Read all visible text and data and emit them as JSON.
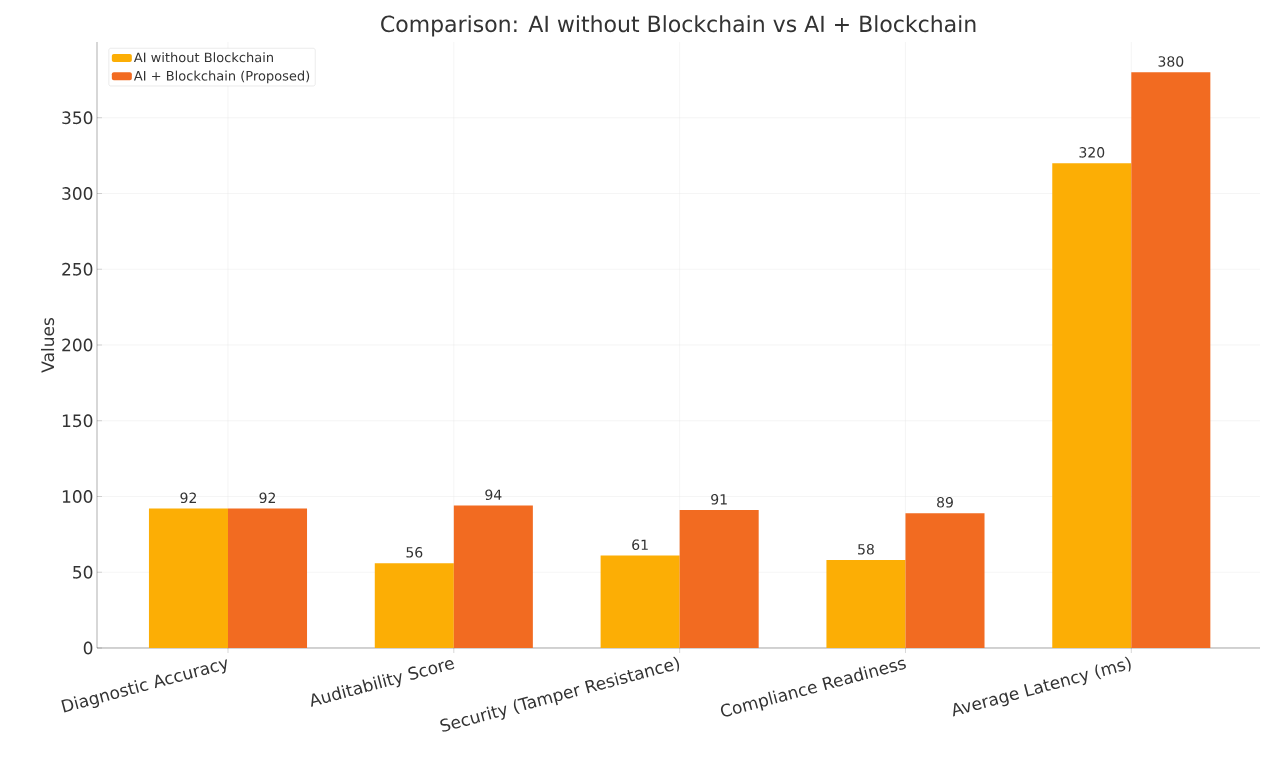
{
  "chart_data": {
    "type": "bar",
    "title": "Comparison: AI without Blockchain vs AI + Blockchain",
    "ylabel": "Values",
    "categories": [
      "Diagnostic Accuracy",
      "Auditability Score",
      "Security (Tamper Resistance)",
      "Compliance Readiness",
      "Average Latency (ms)"
    ],
    "series": [
      {
        "name": "AI without Blockchain",
        "color": "#fcae05",
        "values": [
          92,
          56,
          61,
          58,
          320
        ]
      },
      {
        "name": "AI + Blockchain (Proposed)",
        "color": "#f26b21",
        "values": [
          92,
          94,
          91,
          89,
          380
        ]
      }
    ],
    "ylim": [
      0,
      400
    ],
    "yticks": [
      0,
      50,
      100,
      150,
      200,
      250,
      300,
      350
    ],
    "grid": true,
    "legend": "top left",
    "data_labels": true
  }
}
